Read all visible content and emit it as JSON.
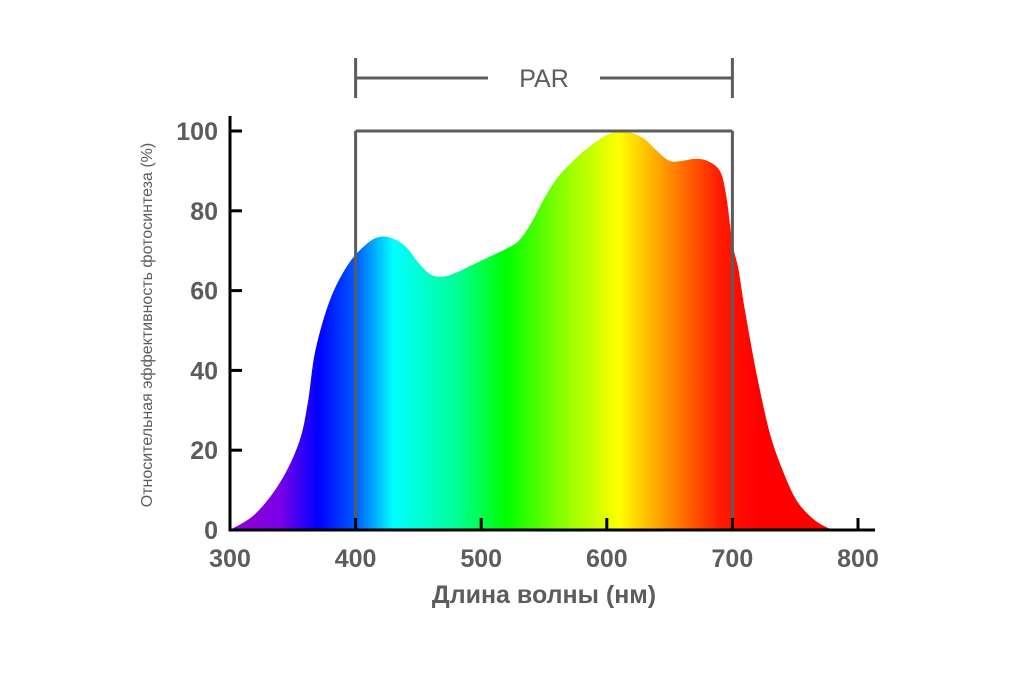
{
  "chart_data": {
    "type": "area",
    "title": "",
    "xlabel": "Длина волны (нм)",
    "ylabel": "Относительная эффективность фотосинтеза (%)",
    "xlim": [
      300,
      800
    ],
    "ylim": [
      0,
      100
    ],
    "xticks": [
      300,
      400,
      500,
      600,
      700,
      800
    ],
    "yticks": [
      0,
      20,
      40,
      60,
      80,
      100
    ],
    "grid": false,
    "series": [
      {
        "x": [
          300,
          320,
          340,
          355,
          362,
          368,
          380,
          395,
          410,
          420,
          430,
          440,
          450,
          460,
          470,
          480,
          490,
          500,
          510,
          520,
          530,
          540,
          550,
          560,
          570,
          580,
          590,
          600,
          610,
          620,
          630,
          640,
          650,
          660,
          670,
          680,
          690,
          695,
          700,
          705,
          710,
          720,
          730,
          740,
          750,
          760,
          770,
          780
        ],
        "y": [
          0,
          4,
          12,
          22,
          32,
          45,
          58,
          67,
          72,
          73.5,
          73,
          71,
          67,
          64,
          63.5,
          64.5,
          66,
          67.5,
          69,
          70.5,
          72.5,
          77,
          83,
          88,
          91.5,
          94.5,
          97,
          99,
          100,
          99.5,
          98,
          95,
          92.5,
          92.5,
          93,
          92.5,
          90,
          84,
          72,
          65,
          55,
          38,
          24,
          15,
          8,
          4,
          1.5,
          0
        ]
      }
    ],
    "annotations": [
      {
        "type": "range-bracket",
        "label": "PAR",
        "x_start": 400,
        "x_end": 700,
        "y_top": 100
      }
    ],
    "gradient_stops": [
      {
        "x": 300,
        "color": "#9400d3"
      },
      {
        "x": 340,
        "color": "#7a00e6"
      },
      {
        "x": 370,
        "color": "#0000ff"
      },
      {
        "x": 400,
        "color": "#0059ff"
      },
      {
        "x": 430,
        "color": "#00ffff"
      },
      {
        "x": 480,
        "color": "#00ff99"
      },
      {
        "x": 520,
        "color": "#00ff00"
      },
      {
        "x": 570,
        "color": "#99ff00"
      },
      {
        "x": 610,
        "color": "#ffff00"
      },
      {
        "x": 650,
        "color": "#ff8c00"
      },
      {
        "x": 690,
        "color": "#ff1a00"
      },
      {
        "x": 720,
        "color": "#ff0000"
      },
      {
        "x": 780,
        "color": "#ff0000"
      }
    ],
    "axis_color": "#000000",
    "bracket_color": "#5c5c5c"
  }
}
